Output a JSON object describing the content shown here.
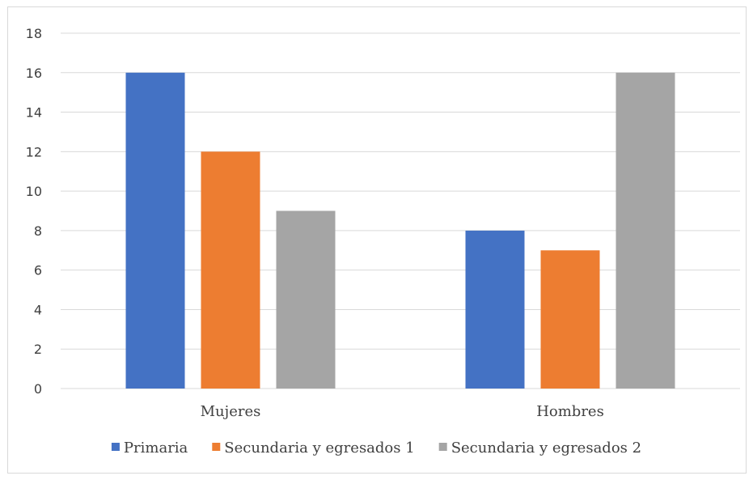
{
  "chart_data": {
    "type": "bar",
    "categories": [
      "Mujeres",
      "Hombres"
    ],
    "series": [
      {
        "name": "Primaria",
        "values": [
          16,
          8
        ],
        "color": "#4472c4"
      },
      {
        "name": "Secundaria y egresados 1",
        "values": [
          12,
          7
        ],
        "color": "#ed7d31"
      },
      {
        "name": "Secundaria y egresados 2",
        "values": [
          9,
          16
        ],
        "color": "#a5a5a5"
      }
    ],
    "ylim": [
      0,
      18
    ],
    "yticks": [
      "0",
      "2",
      "4",
      "6",
      "8",
      "10",
      "12",
      "14",
      "16",
      "18"
    ],
    "grid": true,
    "gridColor": "#d9d9d9",
    "legend_position": "bottom"
  }
}
